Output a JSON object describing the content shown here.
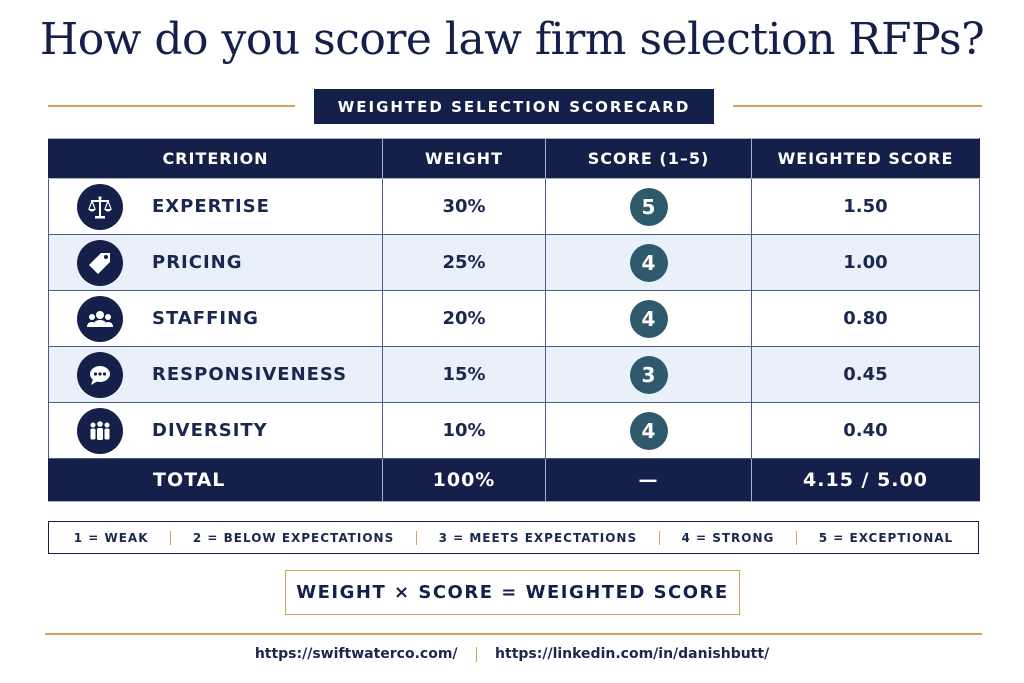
{
  "title": "How do you score law firm selection RFPs?",
  "subtitle": "WEIGHTED SELECTION SCORECARD",
  "table": {
    "headers": [
      "CRITERION",
      "WEIGHT",
      "SCORE (1–5)",
      "WEIGHTED SCORE"
    ],
    "rows": [
      {
        "icon": "scales-of-justice-icon",
        "criterion": "EXPERTISE",
        "weight": "30%",
        "score": "5",
        "weighted": "1.50"
      },
      {
        "icon": "price-tag-icon",
        "criterion": "PRICING",
        "weight": "25%",
        "score": "4",
        "weighted": "1.00"
      },
      {
        "icon": "team-group-icon",
        "criterion": "STAFFING",
        "weight": "20%",
        "score": "4",
        "weighted": "0.80"
      },
      {
        "icon": "chat-bubble-icon",
        "criterion": "RESPONSIVENESS",
        "weight": "15%",
        "score": "3",
        "weighted": "0.45"
      },
      {
        "icon": "people-row-icon",
        "criterion": "DIVERSITY",
        "weight": "10%",
        "score": "4",
        "weighted": "0.40"
      }
    ],
    "total": {
      "label": "TOTAL",
      "weight": "100%",
      "score": "—",
      "weighted": "4.15 / 5.00"
    }
  },
  "legend": [
    "1 = WEAK",
    "2 = BELOW EXPECTATIONS",
    "3 = MEETS EXPECTATIONS",
    "4 = STRONG",
    "5 = EXCEPTIONAL"
  ],
  "formula": "WEIGHT × SCORE =  WEIGHTED SCORE",
  "footer": {
    "link1": "https://swiftwaterco.com/",
    "link2": "https://linkedin.com/in/danishbutt/"
  },
  "colors": {
    "navy": "#14204a",
    "gold": "#c9a65a",
    "score_teal": "#2f5a6b",
    "row_alt": "#eaf0fa"
  }
}
